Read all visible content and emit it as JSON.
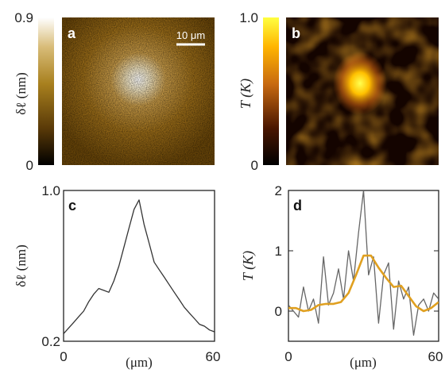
{
  "panels": {
    "a": {
      "label": "a",
      "colorbar_label": "δℓ (nm)",
      "cb_max": "0.9",
      "cb_min": "0",
      "scalebar": "10 μm",
      "colors": [
        "#000000",
        "#5a3a08",
        "#a8801e",
        "#d8bc78",
        "#ffffff"
      ]
    },
    "b": {
      "label": "b",
      "colorbar_label": "T (K)",
      "cb_max": "1.0",
      "cb_min": "0",
      "colors": [
        "#000000",
        "#4a1600",
        "#c86a10",
        "#ffb400",
        "#ffff40"
      ]
    },
    "c": {
      "label": "c"
    },
    "d": {
      "label": "d"
    }
  },
  "chart_data": [
    {
      "type": "line",
      "panel": "c",
      "xlabel": "(μm)",
      "ylabel": "δℓ (nm)",
      "xlim": [
        0,
        60
      ],
      "ylim": [
        0.2,
        1.0
      ],
      "x_ticks": [
        "0",
        "60"
      ],
      "y_ticks": [
        "0.2",
        "1.0"
      ],
      "series": [
        {
          "color": "#333333",
          "x": [
            0,
            2,
            4,
            6,
            8,
            10,
            12,
            14,
            16,
            18,
            20,
            22,
            24,
            26,
            28,
            30,
            32,
            34,
            36,
            38,
            40,
            42,
            44,
            46,
            48,
            50,
            52,
            54,
            56,
            58,
            60
          ],
          "values": [
            0.24,
            0.27,
            0.3,
            0.33,
            0.36,
            0.41,
            0.45,
            0.48,
            0.47,
            0.46,
            0.52,
            0.6,
            0.7,
            0.8,
            0.9,
            0.95,
            0.82,
            0.72,
            0.62,
            0.58,
            0.54,
            0.5,
            0.46,
            0.42,
            0.38,
            0.35,
            0.32,
            0.29,
            0.28,
            0.26,
            0.25
          ]
        }
      ]
    },
    {
      "type": "line",
      "panel": "d",
      "xlabel": "(μm)",
      "ylabel": "T (K)",
      "xlim": [
        0,
        60
      ],
      "ylim": [
        -0.5,
        2
      ],
      "x_ticks": [
        "0",
        "60"
      ],
      "y_ticks": [
        "0",
        "1",
        "2"
      ],
      "series": [
        {
          "color": "#666666",
          "x": [
            0,
            2,
            4,
            6,
            8,
            10,
            12,
            14,
            16,
            18,
            20,
            22,
            24,
            26,
            28,
            30,
            32,
            34,
            36,
            38,
            40,
            42,
            44,
            46,
            48,
            50,
            52,
            54,
            56,
            58,
            60
          ],
          "values": [
            0.1,
            0.0,
            -0.1,
            0.4,
            0.0,
            0.2,
            -0.2,
            0.9,
            0.1,
            0.3,
            0.7,
            0.2,
            1.0,
            0.5,
            1.3,
            2.0,
            0.6,
            0.9,
            -0.2,
            0.6,
            0.8,
            -0.3,
            0.5,
            0.2,
            0.4,
            -0.4,
            0.1,
            0.2,
            0.0,
            0.3,
            0.2
          ]
        },
        {
          "color": "#e0a020",
          "x": [
            0,
            3,
            6,
            9,
            12,
            15,
            18,
            21,
            24,
            27,
            30,
            33,
            36,
            39,
            42,
            45,
            48,
            51,
            54,
            57,
            60
          ],
          "values": [
            0.05,
            0.05,
            0.0,
            0.02,
            0.1,
            0.12,
            0.12,
            0.15,
            0.3,
            0.6,
            0.92,
            0.92,
            0.72,
            0.55,
            0.4,
            0.42,
            0.25,
            0.08,
            0.0,
            0.05,
            0.15
          ]
        }
      ]
    }
  ]
}
